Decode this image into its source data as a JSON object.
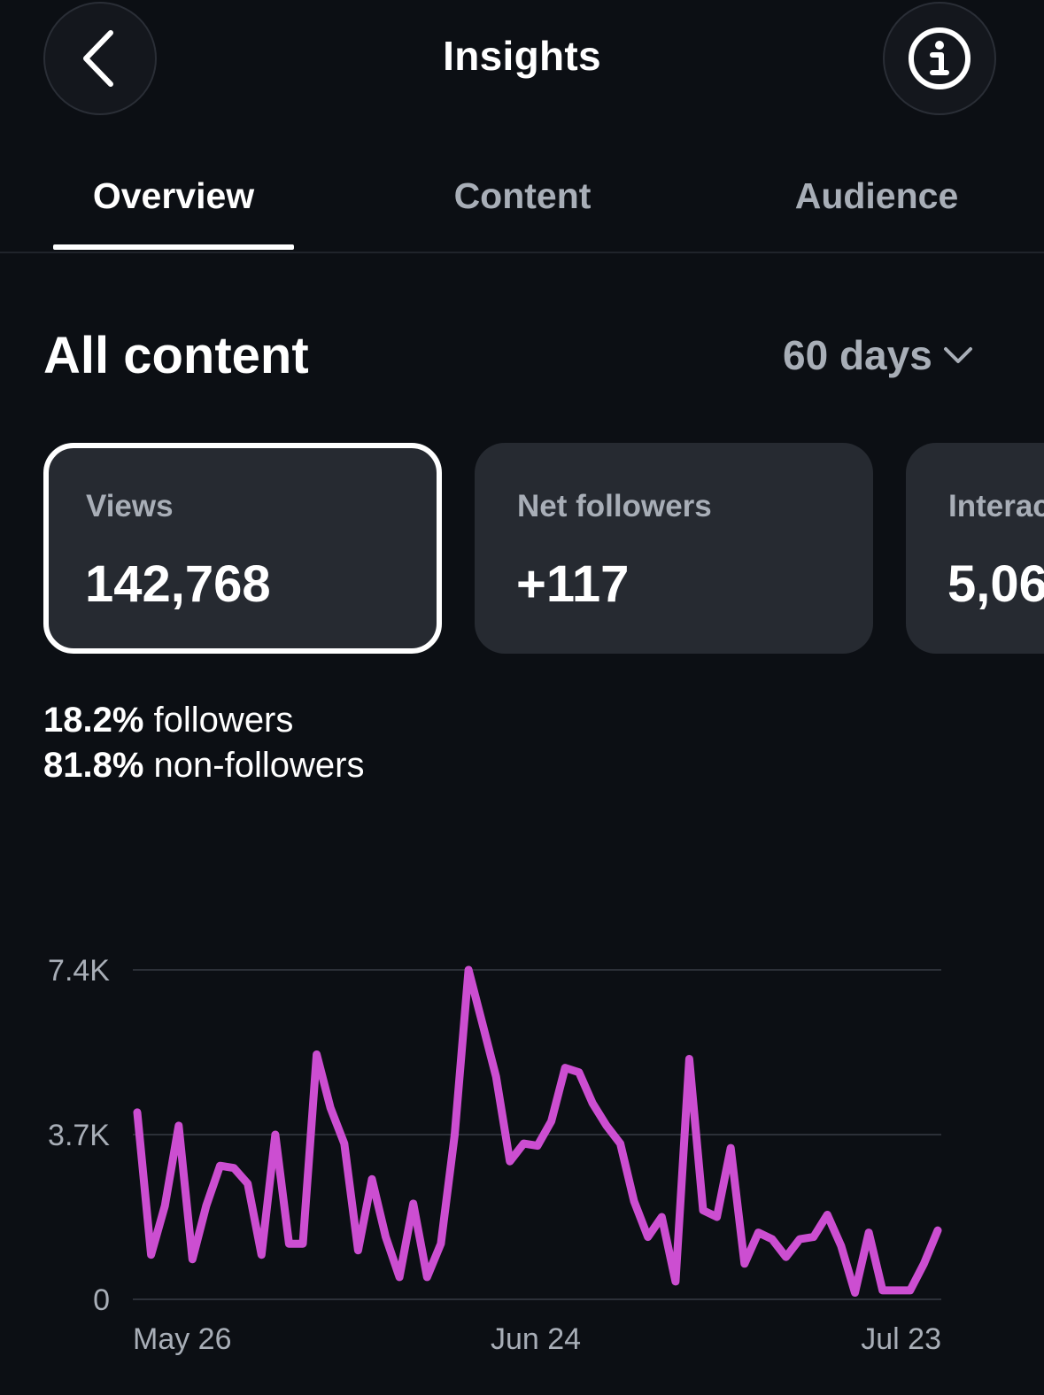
{
  "header": {
    "title": "Insights",
    "back_icon": "chevron-left-icon",
    "info_icon": "info-icon"
  },
  "tabs": [
    {
      "label": "Overview",
      "active": true
    },
    {
      "label": "Content",
      "active": false
    },
    {
      "label": "Audience",
      "active": false
    }
  ],
  "section": {
    "title": "All content",
    "period": "60 days"
  },
  "cards": [
    {
      "label": "Views",
      "value": "142,768",
      "selected": true
    },
    {
      "label": "Net followers",
      "value": "+117",
      "selected": false
    },
    {
      "label": "Interactions",
      "value": "5,06",
      "selected": false
    }
  ],
  "audience_split": {
    "followers_pct": "18.2%",
    "followers_label": "followers",
    "non_followers_pct": "81.8%",
    "non_followers_label": "non-followers"
  },
  "colors": {
    "background": "#0c0f14",
    "card": "#262a31",
    "line": "#cc4ed1",
    "muted_text": "#a8aeb7"
  },
  "chart_data": {
    "type": "line",
    "y_ticks": [
      "7.4K",
      "3.7K",
      "0"
    ],
    "ylim": [
      0,
      7400
    ],
    "x_ticks": [
      "May 26",
      "Jun 24",
      "Jul 23"
    ],
    "grid": true,
    "series": [
      {
        "values": [
          4200,
          1000,
          2100,
          3900,
          900,
          2100,
          3000,
          2950,
          2600,
          1000,
          3700,
          1250,
          1250,
          5500,
          4300,
          3500,
          1100,
          2700,
          1400,
          500,
          2150,
          500,
          1250,
          3700,
          7400,
          6200,
          5000,
          3100,
          3500,
          3450,
          4000,
          5200,
          5100,
          4400,
          3900,
          3500,
          2200,
          1400,
          1850,
          400,
          5400,
          2000,
          1850,
          3400,
          800,
          1500,
          1350,
          950,
          1350,
          1400,
          1900,
          1200,
          150,
          1500,
          200,
          200,
          200,
          800,
          1550
        ]
      }
    ]
  }
}
